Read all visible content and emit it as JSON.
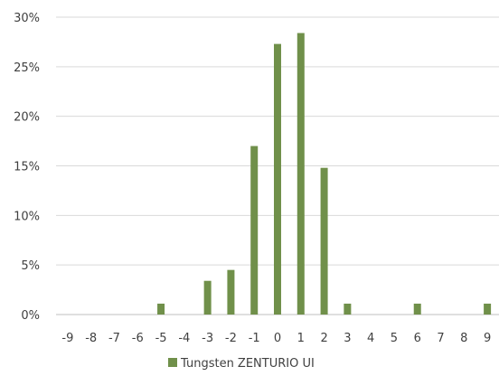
{
  "chart_data": {
    "type": "bar",
    "title": "",
    "xlabel": "",
    "ylabel": "",
    "categories": [
      "-9",
      "-8",
      "-7",
      "-6",
      "-5",
      "-4",
      "-3",
      "-2",
      "-1",
      "0",
      "1",
      "2",
      "3",
      "4",
      "5",
      "6",
      "7",
      "8",
      "9"
    ],
    "series": [
      {
        "name": "Tungsten ZENTURIO UI",
        "values": [
          0,
          0,
          0,
          0,
          1.1,
          0,
          3.4,
          4.5,
          17.0,
          27.3,
          28.4,
          14.8,
          1.1,
          0,
          0,
          1.1,
          0,
          0,
          1.1
        ],
        "color": "#70904a"
      }
    ],
    "ylim": [
      0,
      30
    ],
    "yticks": [
      0,
      5,
      10,
      15,
      20,
      25,
      30
    ],
    "ytick_labels": [
      "0%",
      "5%",
      "10%",
      "15%",
      "20%",
      "25%",
      "30%"
    ],
    "grid": true,
    "legend_position": "bottom"
  }
}
